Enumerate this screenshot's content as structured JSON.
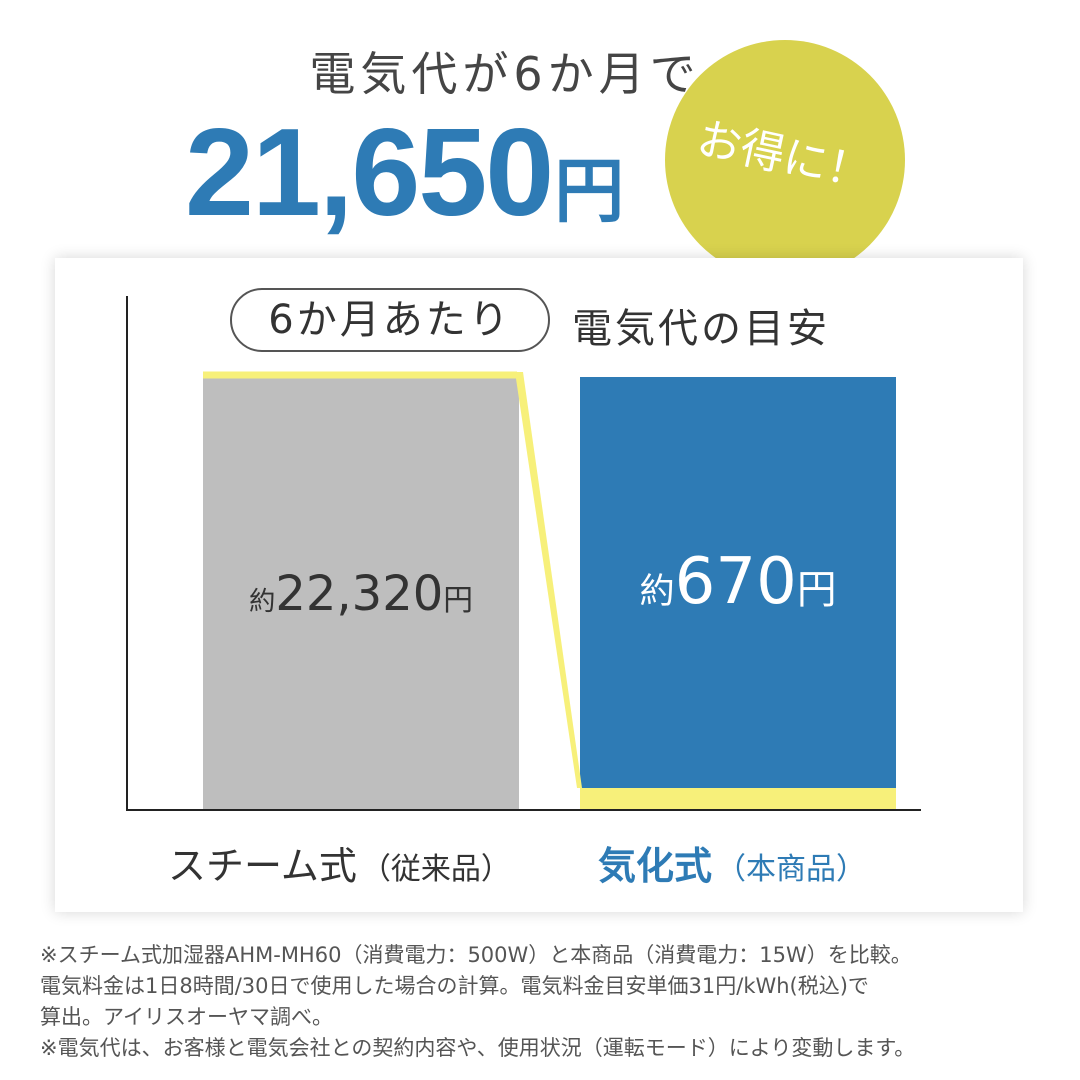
{
  "header": {
    "headline": "電気代が6か月で",
    "savings_value": "21,650",
    "savings_unit": "円",
    "badge": "お得に！"
  },
  "chart_header": {
    "pill": "6か月あたり",
    "suffix": "電気代の目安"
  },
  "chart_data": {
    "type": "bar",
    "categories": [
      "スチーム式",
      "気化式"
    ],
    "category_notes": [
      "（従来品）",
      "（本商品）"
    ],
    "values": [
      22320,
      670
    ],
    "value_labels": [
      {
        "prefix": "約",
        "value": "22,320",
        "unit": "円"
      },
      {
        "prefix": "約",
        "value": "670",
        "unit": "円"
      }
    ],
    "colors": {
      "steam": "#bebebe",
      "vaporizing": "#2e7bb5",
      "highlight": "#f7f07a",
      "axis": "#222222"
    },
    "grid": false,
    "legend": "none"
  },
  "notes": [
    "※スチーム式加湿器AHM-MH60（消費電力：500W）と本商品（消費電力：15W）を比較。",
    "電気料金は1日8時間/30日で使用した場合の計算。電気料金目安単価31円/kWh(税込)で",
    "算出。アイリスオーヤマ調べ。",
    "※電気代は、お客様と電気会社との契約内容や、使用状況（運転モード）により変動します。"
  ]
}
